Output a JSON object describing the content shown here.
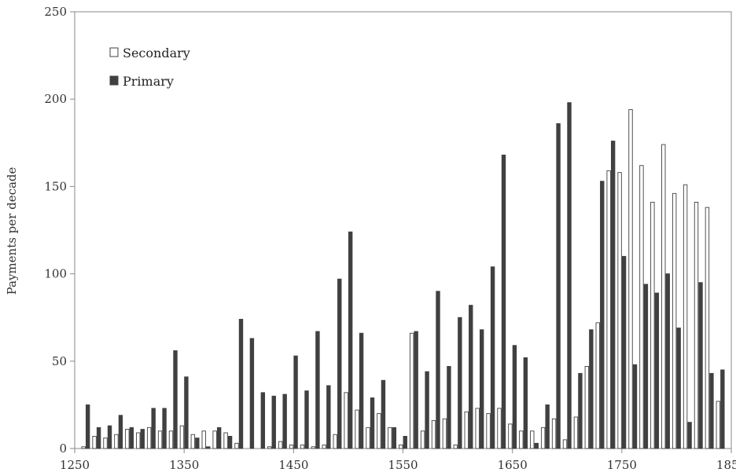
{
  "chart_data": {
    "type": "bar",
    "title": "",
    "xlabel": "",
    "ylabel": "Payments per decade",
    "xlim": [
      1250,
      1850
    ],
    "ylim": [
      0,
      250
    ],
    "x_ticks": [
      "1250",
      "1350",
      "1450",
      "1550",
      "1650",
      "1750",
      "1850"
    ],
    "y_ticks": [
      "0",
      "50",
      "100",
      "150",
      "200",
      "250"
    ],
    "grid": false,
    "legend_position": "top-left",
    "x": [
      1260,
      1270,
      1280,
      1290,
      1300,
      1310,
      1320,
      1330,
      1340,
      1350,
      1360,
      1370,
      1380,
      1390,
      1400,
      1410,
      1420,
      1430,
      1440,
      1450,
      1460,
      1470,
      1480,
      1490,
      1500,
      1510,
      1520,
      1530,
      1540,
      1550,
      1560,
      1570,
      1580,
      1590,
      1600,
      1610,
      1620,
      1630,
      1640,
      1650,
      1660,
      1670,
      1680,
      1690,
      1700,
      1710,
      1720,
      1730,
      1740,
      1750,
      1760,
      1770,
      1780,
      1790,
      1800,
      1810,
      1820,
      1830,
      1840
    ],
    "series": [
      {
        "name": "Secondary",
        "color": "#ffffff",
        "values": [
          1,
          7,
          6,
          8,
          11,
          9,
          12,
          10,
          10,
          13,
          8,
          10,
          10,
          9,
          3,
          0,
          0,
          1,
          4,
          2,
          2,
          1,
          2,
          8,
          32,
          22,
          12,
          20,
          12,
          2,
          66,
          10,
          16,
          17,
          2,
          21,
          23,
          20,
          23,
          14,
          10,
          10,
          12,
          17,
          5,
          18,
          47,
          72,
          159,
          158,
          194,
          162,
          141,
          174,
          146,
          151,
          141,
          138,
          27
        ]
      },
      {
        "name": "Primary",
        "color": "#404040",
        "values": [
          25,
          12,
          13,
          19,
          12,
          11,
          23,
          23,
          56,
          41,
          6,
          1,
          12,
          7,
          74,
          63,
          32,
          30,
          31,
          53,
          33,
          67,
          36,
          97,
          124,
          66,
          29,
          39,
          12,
          7,
          67,
          44,
          90,
          47,
          75,
          82,
          68,
          104,
          168,
          59,
          52,
          3,
          25,
          186,
          198,
          43,
          68,
          153,
          176,
          110,
          48,
          94,
          89,
          100,
          69,
          15,
          95,
          43,
          45
        ]
      }
    ]
  }
}
